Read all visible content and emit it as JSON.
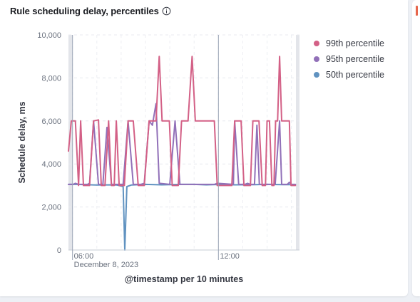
{
  "panel": {
    "title": "Rule scheduling delay, percentiles",
    "info_icon": "info-circle-icon"
  },
  "chart_data": {
    "type": "line",
    "title": "Rule scheduling delay, percentiles",
    "xlabel": "@timestamp per 10 minutes",
    "ylabel": "Schedule delay, ms",
    "ylim": [
      0,
      10000
    ],
    "yticks": [
      0,
      2000,
      4000,
      6000,
      8000,
      10000
    ],
    "ytick_labels": [
      "0",
      "2,000",
      "4,000",
      "6,000",
      "8,000",
      "10,000"
    ],
    "xlim": [
      "05:50",
      "15:20"
    ],
    "xticks": [
      "06:00",
      "12:00"
    ],
    "x_date_label": "December 8, 2023",
    "grid": true,
    "legend_position": "right",
    "series": [
      {
        "name": "99th percentile",
        "color": "#d36086",
        "points": [
          [
            "05:50",
            4600
          ],
          [
            "05:57",
            6000
          ],
          [
            "06:07",
            6000
          ],
          [
            "06:15",
            3000
          ],
          [
            "06:20",
            6000
          ],
          [
            "06:27",
            3000
          ],
          [
            "06:42",
            3000
          ],
          [
            "06:52",
            6000
          ],
          [
            "07:04",
            6050
          ],
          [
            "07:11",
            3000
          ],
          [
            "07:20",
            3000
          ],
          [
            "07:29",
            6000
          ],
          [
            "07:36",
            3000
          ],
          [
            "07:43",
            3000
          ],
          [
            "07:48",
            6000
          ],
          [
            "07:55",
            3000
          ],
          [
            "08:08",
            3000
          ],
          [
            "08:17",
            6000
          ],
          [
            "08:30",
            6000
          ],
          [
            "08:42",
            3000
          ],
          [
            "08:57",
            3000
          ],
          [
            "09:09",
            6000
          ],
          [
            "09:26",
            6000
          ],
          [
            "09:34",
            9000
          ],
          [
            "09:41",
            6000
          ],
          [
            "09:59",
            6000
          ],
          [
            "10:06",
            3000
          ],
          [
            "10:21",
            3000
          ],
          [
            "10:29",
            6000
          ],
          [
            "10:45",
            6000
          ],
          [
            "10:55",
            9000
          ],
          [
            "11:03",
            6000
          ],
          [
            "11:50",
            6000
          ],
          [
            "11:57",
            3000
          ],
          [
            "12:33",
            3000
          ],
          [
            "12:40",
            6000
          ],
          [
            "12:56",
            6000
          ],
          [
            "13:03",
            3000
          ],
          [
            "13:19",
            3000
          ],
          [
            "13:25",
            6000
          ],
          [
            "13:40",
            6000
          ],
          [
            "13:48",
            3000
          ],
          [
            "13:56",
            3000
          ],
          [
            "14:00",
            6000
          ],
          [
            "14:06",
            6000
          ],
          [
            "14:12",
            3000
          ],
          [
            "14:17",
            3000
          ],
          [
            "14:21",
            6000
          ],
          [
            "14:26",
            6000
          ],
          [
            "14:31",
            9000
          ],
          [
            "14:36",
            6000
          ],
          [
            "14:55",
            6000
          ],
          [
            "14:59",
            3000
          ],
          [
            "15:10",
            3000
          ]
        ]
      },
      {
        "name": "95th percentile",
        "color": "#9170b8",
        "points": [
          [
            "05:50",
            3050
          ],
          [
            "06:02",
            3050
          ],
          [
            "06:07",
            3100
          ],
          [
            "06:15",
            3050
          ],
          [
            "06:37",
            3050
          ],
          [
            "06:42",
            3100
          ],
          [
            "06:52",
            6000
          ],
          [
            "07:04",
            3050
          ],
          [
            "07:15",
            3050
          ],
          [
            "07:25",
            5700
          ],
          [
            "07:36",
            3050
          ],
          [
            "08:05",
            3050
          ],
          [
            "08:17",
            6000
          ],
          [
            "08:30",
            3050
          ],
          [
            "08:48",
            3050
          ],
          [
            "08:57",
            3100
          ],
          [
            "09:09",
            6000
          ],
          [
            "09:17",
            5800
          ],
          [
            "09:26",
            6800
          ],
          [
            "09:34",
            3100
          ],
          [
            "10:00",
            3050
          ],
          [
            "10:13",
            6000
          ],
          [
            "10:25",
            3050
          ],
          [
            "10:56",
            3050
          ],
          [
            "11:03",
            3050
          ],
          [
            "11:50",
            3050
          ],
          [
            "11:57",
            3100
          ],
          [
            "12:37",
            3050
          ],
          [
            "12:40",
            6000
          ],
          [
            "12:50",
            3050
          ],
          [
            "13:05",
            3050
          ],
          [
            "13:12",
            3100
          ],
          [
            "13:19",
            3050
          ],
          [
            "13:29",
            3050
          ],
          [
            "13:35",
            5800
          ],
          [
            "13:41",
            3050
          ],
          [
            "14:05",
            3050
          ],
          [
            "14:11",
            3050
          ],
          [
            "14:20",
            3050
          ],
          [
            "14:31",
            6000
          ],
          [
            "14:36",
            3050
          ],
          [
            "14:50",
            3050
          ],
          [
            "14:55",
            3150
          ],
          [
            "15:00",
            3050
          ],
          [
            "15:10",
            3050
          ]
        ]
      },
      {
        "name": "50th percentile",
        "color": "#6092c0",
        "points": [
          [
            "05:50",
            3050
          ],
          [
            "06:10",
            3050
          ],
          [
            "07:00",
            3020
          ],
          [
            "07:35",
            3030
          ],
          [
            "07:50",
            3020
          ],
          [
            "08:05",
            2950
          ],
          [
            "08:09",
            0
          ],
          [
            "08:14",
            2950
          ],
          [
            "08:25",
            3020
          ],
          [
            "09:00",
            3050
          ],
          [
            "09:40",
            3030
          ],
          [
            "10:30",
            3050
          ],
          [
            "11:00",
            3050
          ],
          [
            "11:30",
            3030
          ],
          [
            "12:10",
            3050
          ],
          [
            "12:40",
            3030
          ],
          [
            "13:30",
            3040
          ],
          [
            "14:00",
            3050
          ],
          [
            "14:40",
            3040
          ],
          [
            "15:10",
            3040
          ]
        ]
      }
    ]
  }
}
